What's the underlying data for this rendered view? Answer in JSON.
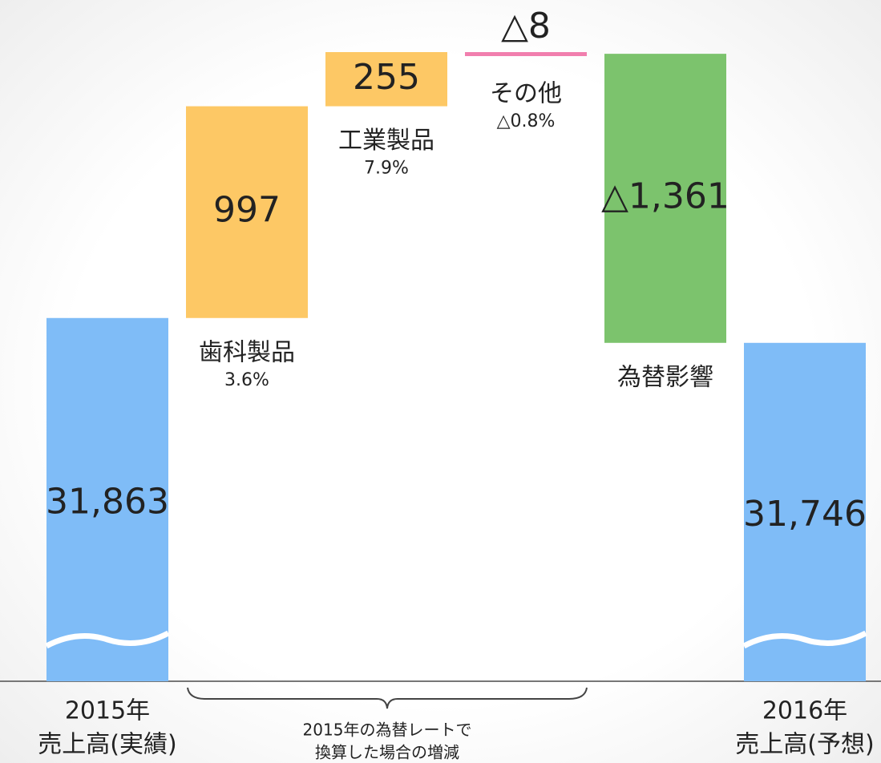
{
  "chart_data": {
    "type": "waterfall",
    "categories": [
      [
        "2015年",
        "売上高(実績)"
      ],
      [
        "歯科製品"
      ],
      [
        "工業製品"
      ],
      [
        "その他"
      ],
      [
        "為替影響"
      ],
      [
        "2016年",
        "売上高(予想)"
      ]
    ],
    "sublabels": [
      null,
      "3.6%",
      "7.9%",
      "△0.8%",
      null,
      null
    ],
    "values": [
      31863,
      997,
      255,
      -8,
      -1361,
      31746
    ],
    "value_labels": [
      "31,863",
      "997",
      "255",
      "△8",
      "△1,361",
      "31,746"
    ],
    "colors": [
      "#7fbcf7",
      "#fdc865",
      "#fdc865",
      "#f17fae",
      "#7cc36d",
      "#7fbcf7"
    ],
    "annotation": [
      "2015年の為替レートで",
      "換算した場合の増減"
    ]
  }
}
